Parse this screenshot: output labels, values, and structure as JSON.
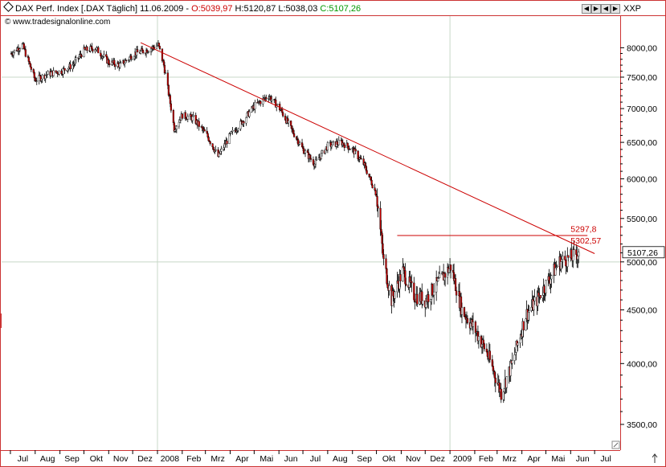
{
  "header": {
    "icon": "diamond-icon",
    "title": "DAX Perf. Index [.DAX  Täglich] 11.06.2009",
    "open": "O:5039,97",
    "high": "H:5120,87",
    "low": "L:5038,03",
    "close": "C:5107,26",
    "watermark": "www.tradesignalonline.com",
    "symbol": "XXP",
    "colors": {
      "open": "#cc0000",
      "close": "#009900"
    }
  },
  "nav_buttons": [
    "◀",
    "▶",
    "◀",
    "▶"
  ],
  "chart_data": {
    "type": "candlestick",
    "title": "DAX Perf. Index [.DAX  Täglich] 11.06.2009",
    "ylim": [
      3300,
      8400
    ],
    "y_scale": "log",
    "y_ticks": [
      8000,
      7500,
      7000,
      6500,
      6000,
      5500,
      5000,
      4500,
      4000,
      3500
    ],
    "y_tick_labels": [
      "8000,00",
      "7500,00",
      "7000,00",
      "6500,00",
      "6000,00",
      "5500,00",
      "5000,00",
      "4500,00",
      "4000,00",
      "3500,00"
    ],
    "x_ticks": [
      "Jul",
      "Aug",
      "Sep",
      "Okt",
      "Nov",
      "Dez",
      "2008",
      "Feb",
      "Mrz",
      "Apr",
      "Mai",
      "Jun",
      "Jul",
      "Aug",
      "Sep",
      "Okt",
      "Nov",
      "Dez",
      "2009",
      "Feb",
      "Mrz",
      "Apr",
      "Mai",
      "Jun",
      "Jul"
    ],
    "grid": {
      "horizontal": [
        7500,
        5000
      ],
      "vertical": [
        "2008",
        "2009"
      ]
    },
    "last_value": 5107.26,
    "last_value_label": "5107,26",
    "series": [
      {
        "x": [
          "2007-07-02",
          "2007-07-16",
          "2007-08-01",
          "2007-08-16",
          "2007-09-03",
          "2007-09-17",
          "2007-10-01",
          "2007-10-15",
          "2007-11-01",
          "2007-11-16",
          "2007-12-03",
          "2007-12-17",
          "2008-01-02",
          "2008-01-09",
          "2008-01-22",
          "2008-02-01",
          "2008-02-15",
          "2008-03-03",
          "2008-03-17",
          "2008-04-01",
          "2008-04-16",
          "2008-05-02",
          "2008-05-19",
          "2008-06-02",
          "2008-06-16",
          "2008-07-01",
          "2008-07-16",
          "2008-08-01",
          "2008-08-18",
          "2008-09-01",
          "2008-09-15",
          "2008-10-01",
          "2008-10-10",
          "2008-10-20",
          "2008-11-03",
          "2008-11-17",
          "2008-12-01",
          "2008-12-15",
          "2009-01-02",
          "2009-01-16",
          "2009-02-02",
          "2009-02-16",
          "2009-03-06",
          "2009-03-20",
          "2009-04-06",
          "2009-04-20",
          "2009-05-04",
          "2009-05-18",
          "2009-06-02",
          "2009-06-11"
        ],
        "values": [
          7900,
          8050,
          7450,
          7550,
          7600,
          7700,
          7950,
          8000,
          7750,
          7700,
          7900,
          7950,
          8050,
          7700,
          6700,
          6900,
          6850,
          6600,
          6300,
          6600,
          6800,
          7050,
          7200,
          7000,
          6700,
          6400,
          6200,
          6450,
          6500,
          6400,
          6200,
          5800,
          5000,
          4600,
          4900,
          4650,
          4600,
          4750,
          4950,
          4500,
          4300,
          4100,
          3750,
          4000,
          4450,
          4600,
          4800,
          5000,
          5050,
          5107.26
        ]
      }
    ],
    "annotations": [
      {
        "type": "trendline",
        "x": [
          "2007-12-11",
          "2009-07-01"
        ],
        "y": [
          8090,
          5110
        ],
        "color": "#cc0000"
      },
      {
        "type": "hline",
        "x": [
          "2008-10-27",
          "2009-06-22"
        ],
        "y": 5297.8,
        "color": "#cc0000"
      },
      {
        "type": "label",
        "text": "5297,8",
        "x": "2009-06-02",
        "y": 5380,
        "color": "#cc0000"
      },
      {
        "type": "label",
        "text": "5302,57",
        "x": "2009-06-02",
        "y": 5240,
        "color": "#cc0000"
      }
    ]
  }
}
